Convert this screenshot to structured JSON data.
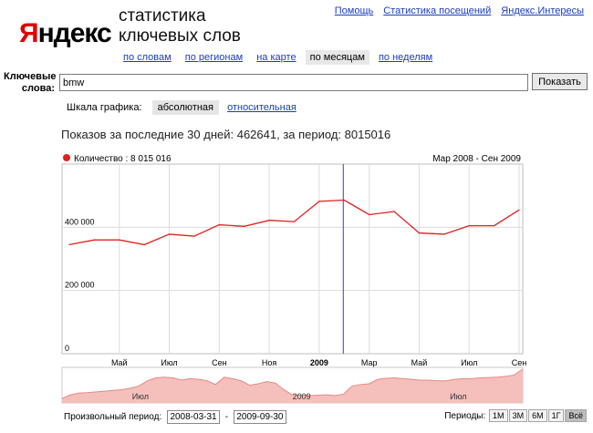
{
  "header": {
    "logo_first": "Я",
    "logo_rest": "ндекс",
    "title_line1": "статистика",
    "title_line2": "ключевых слов",
    "links": [
      "Помощь",
      "Статистика посещений",
      "Яндекс.Интересы"
    ]
  },
  "nav": {
    "items": [
      {
        "label": "по словам",
        "active": false
      },
      {
        "label": "по регионам",
        "active": false
      },
      {
        "label": "на карте",
        "active": false
      },
      {
        "label": "по месяцам",
        "active": true
      },
      {
        "label": "по неделям",
        "active": false
      }
    ]
  },
  "search": {
    "label": "Ключевые слова:",
    "value": "bmw",
    "button_label": "Показать"
  },
  "scale": {
    "label": "Шкала графика:",
    "options": [
      {
        "label": "абсолютная",
        "active": true
      },
      {
        "label": "относительная",
        "active": false
      }
    ]
  },
  "impressions_text": "Показов за последние 30 дней: 462641, за период: 8015016",
  "chart_data": {
    "type": "line",
    "legend": "Количество : 8 015 016",
    "range_label": "Мар 2008 - Сен 2009",
    "series_color": "#e02020",
    "x": [
      "2008-03",
      "2008-04",
      "2008-05",
      "2008-06",
      "2008-07",
      "2008-08",
      "2008-09",
      "2008-10",
      "2008-11",
      "2008-12",
      "2009-01",
      "2009-02",
      "2009-03",
      "2009-04",
      "2009-05",
      "2009-06",
      "2009-07",
      "2009-08",
      "2009-09"
    ],
    "values": [
      345000,
      360000,
      360000,
      345000,
      378000,
      372000,
      408000,
      403000,
      422000,
      418000,
      482000,
      486000,
      440000,
      450000,
      382000,
      378000,
      405000,
      405000,
      455000
    ],
    "ylim": [
      0,
      600000
    ],
    "yticks": [
      {
        "value": 0,
        "label": "0"
      },
      {
        "value": 200000,
        "label": "200 000"
      },
      {
        "value": 400000,
        "label": "400 000"
      }
    ],
    "xtick_labels": [
      {
        "index": 2,
        "label": "Май",
        "bold": false
      },
      {
        "index": 4,
        "label": "Июл",
        "bold": false
      },
      {
        "index": 6,
        "label": "Сен",
        "bold": false
      },
      {
        "index": 8,
        "label": "Ноя",
        "bold": false
      },
      {
        "index": 10,
        "label": "2009",
        "bold": true
      },
      {
        "index": 12,
        "label": "Мар",
        "bold": false
      },
      {
        "index": 14,
        "label": "Май",
        "bold": false
      },
      {
        "index": 16,
        "label": "Июл",
        "bold": false
      },
      {
        "index": 18,
        "label": "Сен",
        "bold": false
      }
    ],
    "marker_index": 11,
    "marker_color": "#3a3ad8",
    "grid": true,
    "overview": {
      "values": [
        60000,
        110000,
        135000,
        140000,
        150000,
        160000,
        170000,
        180000,
        200000,
        230000,
        300000,
        340000,
        350000,
        340000,
        310000,
        330000,
        320000,
        300000,
        250000,
        350000,
        330000,
        300000,
        240000,
        260000,
        290000,
        270000,
        180000,
        110000,
        105000,
        100000,
        105000,
        110000,
        100000,
        120000,
        230000,
        250000,
        260000,
        320000,
        335000,
        340000,
        330000,
        320000,
        310000,
        310000,
        300000,
        300000,
        320000,
        330000,
        330000,
        340000,
        345000,
        350000,
        360000,
        380000,
        460000
      ],
      "labels": [
        {
          "pos": 0.17,
          "label": "Июл"
        },
        {
          "pos": 0.52,
          "label": "2009"
        },
        {
          "pos": 0.86,
          "label": "Июл"
        }
      ],
      "fill_color": "#f5c0bc",
      "line_color": "#e48a82"
    }
  },
  "custom_period": {
    "label": "Произвольный период:",
    "start": "2008-03-31",
    "separator": "-",
    "end": "2009-09-30"
  },
  "periods": {
    "label": "Периоды:",
    "buttons": [
      {
        "label": "1M",
        "active": false
      },
      {
        "label": "3M",
        "active": false
      },
      {
        "label": "6M",
        "active": false
      },
      {
        "label": "1Г",
        "active": false
      },
      {
        "label": "Всё",
        "active": true
      }
    ]
  }
}
